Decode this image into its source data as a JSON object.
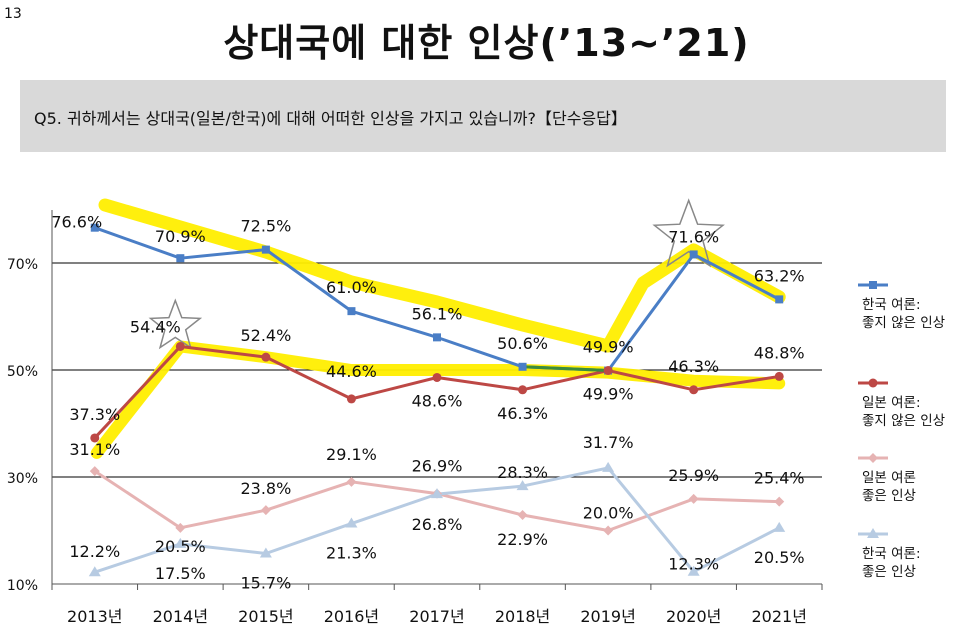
{
  "page_number": "13",
  "title": "상대국에 대한 인상(’13~’21)",
  "question": "Q5. 귀하께서는 상대국(일본/한국)에 대해 어떠한 인상을 가지고 있습니까?【단수응답】",
  "colors": {
    "korea_dislike": "#4a7ec6",
    "japan_dislike": "#bd4845",
    "japan_like": "#e6b3b3",
    "korea_like": "#b7cbe2",
    "highlight": "#ffee00",
    "gridline": "#000000",
    "question_bg": "#d9d9d9"
  },
  "chart_data": {
    "type": "line",
    "categories": [
      "2013년",
      "2014년",
      "2015년",
      "2016년",
      "2017년",
      "2018년",
      "2019년",
      "2020년",
      "2021년"
    ],
    "y_ticks": [
      "10%",
      "30%",
      "50%",
      "70%"
    ],
    "ylim": [
      10,
      80
    ],
    "grid": true,
    "legend_position": "right",
    "series": [
      {
        "name": "한국 여론: 좋지 않은 인상",
        "values": [
          76.6,
          70.9,
          72.5,
          61.0,
          56.1,
          50.6,
          49.9,
          71.6,
          63.2
        ],
        "labels": [
          "76.6%",
          "70.9%",
          "72.5%",
          "61.0%",
          "56.1%",
          "50.6%",
          "49.9%",
          "71.6%",
          "63.2%"
        ],
        "marker": "square"
      },
      {
        "name": "일본 여론: 좋지 않은 인상",
        "values": [
          37.3,
          54.4,
          52.4,
          44.6,
          48.6,
          46.3,
          49.9,
          46.3,
          48.8
        ],
        "labels": [
          "37.3%",
          "54.4%",
          "52.4%",
          "44.6%",
          "48.6%",
          "46.3%",
          "49.9%",
          "46.3%",
          "48.8%"
        ],
        "marker": "circle"
      },
      {
        "name": "일본 여론: 좋은 인상",
        "values": [
          31.1,
          20.5,
          23.8,
          29.1,
          26.9,
          22.9,
          20.0,
          25.9,
          25.4
        ],
        "labels": [
          "31.1%",
          "20.5%",
          "23.8%",
          "29.1%",
          "26.9%",
          "22.9%",
          "20.0%",
          "25.9%",
          "25.4%"
        ],
        "marker": "diamond"
      },
      {
        "name": "한국 여론: 좋은 인상",
        "values": [
          12.2,
          17.5,
          15.7,
          21.3,
          26.8,
          28.3,
          31.7,
          12.3,
          20.5
        ],
        "labels": [
          "12.2%",
          "17.5%",
          "15.7%",
          "21.3%",
          "26.8%",
          "28.3%",
          "31.7%",
          "12.3%",
          "20.5%"
        ],
        "marker": "triangle"
      }
    ],
    "legend": [
      {
        "line1": "한국 여론:",
        "line2": "좋지 않은 인상"
      },
      {
        "line1": "일본 여론:",
        "line2": "좋지 않은 인상"
      },
      {
        "line1": "일본 여론",
        "line2": "좋은 인상"
      },
      {
        "line1": "한국 여론:",
        "line2": "좋은 인상"
      }
    ]
  }
}
